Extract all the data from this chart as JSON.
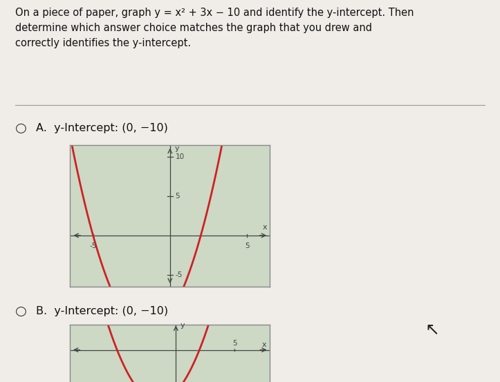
{
  "title_line1": "On a piece of paper, graph y = x² + 3x − 10 and identify the y-intercept. Then",
  "title_line2": "determine which answer choice matches the graph that you drew and",
  "title_line3": "correctly identifies the y-intercept.",
  "option_A_label": "A.  y-Intercept: (0, −10)",
  "option_B_label": "B.  y-Intercept: (0, −10)",
  "page_bg": "#f0ede8",
  "graph_A": {
    "xlim": [
      -6.5,
      6.5
    ],
    "ylim": [
      -6.5,
      11.5
    ],
    "xtick_vals": [
      -5,
      5
    ],
    "xtick_labels": [
      "-5",
      "5"
    ],
    "ytick_vals": [
      -5,
      5,
      10
    ],
    "ytick_labels": [
      "-5",
      "5",
      "10"
    ],
    "x_label": "x",
    "y_label": "y",
    "curve_color": "#cc2222",
    "curve_lw": 2.0,
    "grid_color": "#aaaaaa",
    "bg_color": "#cdd8c5",
    "ax_color": "#444444",
    "border_color": "#888888"
  },
  "graph_B": {
    "xlim": [
      -9,
      8
    ],
    "ylim": [
      -14,
      6
    ],
    "xtick_vals": [
      5
    ],
    "xtick_labels": [
      "5"
    ],
    "ytick_vals": [],
    "ytick_labels": [],
    "x_label": "x",
    "y_label": "y",
    "curve_color": "#cc2222",
    "curve_lw": 2.0,
    "grid_color": "#aaaaaa",
    "bg_color": "#cdd8c5",
    "ax_color": "#444444",
    "border_color": "#888888"
  },
  "radio_color": "#333333",
  "text_color": "#111111",
  "separator_color": "#999999",
  "cursor_color": "#222222"
}
